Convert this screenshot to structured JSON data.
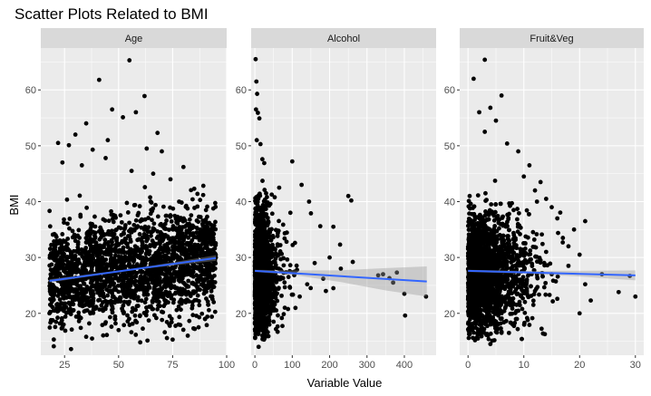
{
  "chart_data": {
    "type": "scatter",
    "title": "Scatter Plots Related to BMI",
    "xlabel": "Variable Value",
    "ylabel": "BMI",
    "y_ticks": [
      20,
      30,
      40,
      50,
      60
    ],
    "ylim": [
      12.5,
      67.5
    ],
    "grid": true,
    "legend": "none",
    "colors": {
      "panel_bg": "#ebebeb",
      "strip_bg": "#d9d9d9",
      "grid": "#ffffff",
      "points": "#000000",
      "fit_line": "#3366ff",
      "ci_band": "#999999"
    },
    "facets": [
      {
        "name": "Age",
        "xlim": [
          14,
          100
        ],
        "x_ticks": [
          25,
          50,
          75,
          100
        ],
        "x_range": [
          18,
          95
        ],
        "fit": {
          "x": [
            18,
            95
          ],
          "y": [
            25.8,
            29.9
          ]
        },
        "ci": {
          "x": [
            18,
            57,
            95
          ],
          "lo": [
            25.5,
            27.8,
            29.4
          ],
          "hi": [
            26.1,
            28.0,
            30.4
          ]
        },
        "points": [
          [
            41,
            61.8
          ],
          [
            55,
            65.3
          ],
          [
            62,
            58.9
          ],
          [
            47,
            56.5
          ],
          [
            52,
            55.1
          ],
          [
            58,
            56.0
          ],
          [
            35,
            54.0
          ],
          [
            30,
            52.0
          ],
          [
            22,
            50.5
          ],
          [
            27,
            50.1
          ],
          [
            68,
            52.3
          ],
          [
            70,
            49.0
          ],
          [
            45,
            51.0
          ],
          [
            63,
            49.5
          ],
          [
            38,
            49.3
          ],
          [
            80,
            46.2
          ],
          [
            85,
            42.3
          ],
          [
            91,
            39.1
          ],
          [
            93,
            35.8
          ],
          [
            90,
            33.0
          ],
          [
            88,
            30.5
          ],
          [
            95,
            30.0
          ],
          [
            92,
            27.4
          ],
          [
            94,
            22.0
          ],
          [
            90,
            19.0
          ],
          [
            87,
            17.5
          ],
          [
            82,
            16.0
          ],
          [
            75,
            15.3
          ],
          [
            60,
            14.8
          ],
          [
            28,
            13.6
          ],
          [
            20,
            14.1
          ],
          [
            35,
            15.8
          ],
          [
            50,
            17.0
          ],
          [
            24,
            47.0
          ],
          [
            33,
            46.5
          ],
          [
            44,
            47.8
          ],
          [
            56,
            45.5
          ],
          [
            66,
            45.0
          ],
          [
            74,
            44.0
          ],
          [
            78,
            40.0
          ],
          [
            18,
            20.0
          ]
        ]
      },
      {
        "name": "Alcohol",
        "xlim": [
          -10,
          485
        ],
        "x_ticks": [
          0,
          100,
          200,
          300,
          400
        ],
        "x_range": [
          0,
          460
        ],
        "fit": {
          "x": [
            0,
            460
          ],
          "y": [
            27.6,
            25.7
          ]
        },
        "ci": {
          "x": [
            0,
            100,
            230,
            350,
            460
          ],
          "lo": [
            27.4,
            26.9,
            25.6,
            24.1,
            23.0
          ],
          "hi": [
            27.8,
            27.7,
            27.7,
            28.1,
            28.4
          ]
        },
        "points": [
          [
            2,
            65.5
          ],
          [
            4,
            61.5
          ],
          [
            6,
            59.3
          ],
          [
            3,
            56.5
          ],
          [
            8,
            55.9
          ],
          [
            12,
            54.9
          ],
          [
            5,
            51.0
          ],
          [
            15,
            50.3
          ],
          [
            20,
            47.6
          ],
          [
            25,
            46.9
          ],
          [
            100,
            47.2
          ],
          [
            65,
            42.5
          ],
          [
            95,
            38.0
          ],
          [
            125,
            43.0
          ],
          [
            145,
            40.0
          ],
          [
            150,
            37.9
          ],
          [
            175,
            35.6
          ],
          [
            210,
            35.5
          ],
          [
            228,
            32.3
          ],
          [
            250,
            41.0
          ],
          [
            258,
            40.2
          ],
          [
            262,
            29.2
          ],
          [
            230,
            28.0
          ],
          [
            183,
            26.2
          ],
          [
            190,
            24.0
          ],
          [
            140,
            25.2
          ],
          [
            330,
            26.8
          ],
          [
            343,
            27.0
          ],
          [
            360,
            26.3
          ],
          [
            370,
            25.5
          ],
          [
            380,
            27.3
          ],
          [
            400,
            23.5
          ],
          [
            402,
            19.6
          ],
          [
            458,
            23.0
          ],
          [
            210,
            24.5
          ],
          [
            120,
            23.0
          ],
          [
            80,
            21.0
          ],
          [
            50,
            18.5
          ],
          [
            30,
            17.0
          ],
          [
            10,
            14.0
          ],
          [
            90,
            26.5
          ],
          [
            160,
            29.0
          ],
          [
            200,
            30.0
          ]
        ]
      },
      {
        "name": "Fruit&Veg",
        "xlim": [
          -1.5,
          31.5
        ],
        "x_ticks": [
          0,
          10,
          20,
          30
        ],
        "x_range": [
          0,
          30
        ],
        "fit": {
          "x": [
            0,
            30
          ],
          "y": [
            27.6,
            26.8
          ]
        },
        "ci": {
          "x": [
            0,
            10,
            20,
            30
          ],
          "lo": [
            27.4,
            27.1,
            26.6,
            25.9
          ],
          "hi": [
            27.8,
            27.6,
            27.6,
            27.7
          ]
        },
        "points": [
          [
            3,
            65.4
          ],
          [
            6,
            59.0
          ],
          [
            1,
            62.0
          ],
          [
            4,
            56.8
          ],
          [
            2,
            56.0
          ],
          [
            5,
            54.5
          ],
          [
            3,
            52.5
          ],
          [
            7,
            50.4
          ],
          [
            9,
            49.0
          ],
          [
            11,
            46.5
          ],
          [
            10,
            44.5
          ],
          [
            13,
            43.5
          ],
          [
            12,
            42.0
          ],
          [
            14,
            40.5
          ],
          [
            15,
            39.0
          ],
          [
            16,
            37.0
          ],
          [
            21,
            36.5
          ],
          [
            19,
            35.0
          ],
          [
            17,
            33.5
          ],
          [
            18,
            32.0
          ],
          [
            20,
            30.5
          ],
          [
            21,
            25.2
          ],
          [
            22,
            22.3
          ],
          [
            20,
            20.0
          ],
          [
            16,
            22.6
          ],
          [
            27,
            23.8
          ],
          [
            29,
            26.7
          ],
          [
            30,
            23.0
          ],
          [
            18,
            28.5
          ],
          [
            15,
            27.0
          ],
          [
            12,
            24.0
          ],
          [
            8,
            18.0
          ],
          [
            6,
            16.5
          ],
          [
            4,
            14.5
          ],
          [
            2,
            17.0
          ],
          [
            13,
            29.5
          ],
          [
            14,
            31.0
          ],
          [
            24,
            27.0
          ]
        ]
      }
    ]
  }
}
